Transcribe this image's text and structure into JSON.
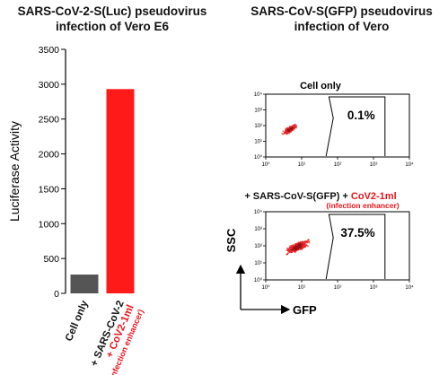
{
  "chart_data": [
    {
      "type": "bar",
      "title": "SARS-CoV-2-S(Luc) pseudovirus infection of Vero E6",
      "ylabel": "Luciferase Activity",
      "ylim": [
        0,
        3500
      ],
      "yticks": [
        0,
        500,
        1000,
        1500,
        2000,
        2500,
        3000,
        3500
      ],
      "categories": [
        {
          "lines": [
            "Cell only"
          ],
          "colors": [
            "#111111"
          ]
        },
        {
          "lines": [
            "+ SARS-CoV-2",
            "+ CoV2-1ml",
            "(infection enhancer)"
          ],
          "colors": [
            "#111111",
            "#e8141b",
            "#e8141b"
          ]
        }
      ],
      "values": [
        270,
        2930
      ],
      "bar_colors": [
        "#555555",
        "#ff1a1a"
      ],
      "grid": false
    },
    {
      "type": "scatter",
      "title": "SARS-CoV-S(GFP) pseudovirus infection of Vero",
      "xlabel": "GFP",
      "ylabel": "SSC",
      "scale": "log",
      "xticks": [
        "10⁰",
        "10¹",
        "10²",
        "10³",
        "10⁴"
      ],
      "yticks": [
        "10⁰",
        "10¹",
        "10²",
        "10³",
        "10⁴"
      ],
      "panels": [
        {
          "label": "Cell only",
          "gate_percent": "0.1%"
        },
        {
          "label_parts": [
            {
              "text": "+ SARS-CoV-S(GFP) + ",
              "color": "#111111"
            },
            {
              "text": "CoV2-1ml",
              "color": "#e8141b"
            }
          ],
          "sublabel": "(infection enhancer)",
          "gate_percent": "37.5%"
        }
      ]
    }
  ]
}
